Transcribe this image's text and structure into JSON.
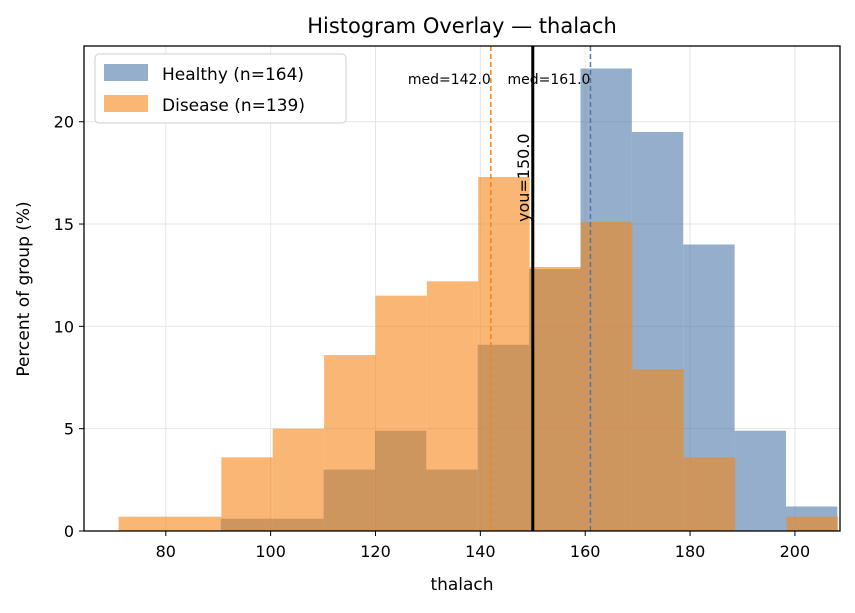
{
  "chart_data": {
    "type": "bar",
    "title": "Histogram Overlay — thalach",
    "xlabel": "thalach",
    "ylabel": "Percent of group (%)",
    "xlim": [
      64.4,
      208.6
    ],
    "ylim": [
      0,
      23.7
    ],
    "x_ticks": [
      80,
      100,
      120,
      140,
      160,
      180,
      200
    ],
    "y_ticks": [
      0,
      5,
      10,
      15,
      20
    ],
    "bin_edges": [
      71.0,
      80.8,
      90.6,
      100.4,
      110.2,
      120.0,
      129.8,
      139.6,
      149.4,
      159.2,
      169.0,
      178.8,
      188.6,
      198.4,
      208.2
    ],
    "grid": true,
    "legend_position": "top-left",
    "series": [
      {
        "name": "Healthy (n=164)",
        "color": "#4c78a8",
        "opacity": 0.6,
        "bin_edges": [
          90.5,
          100.3,
          110.1,
          119.9,
          129.7,
          139.5,
          149.3,
          159.1,
          168.9,
          178.7,
          188.5,
          198.3,
          208.1
        ],
        "values": [
          0.6,
          0.6,
          3.0,
          4.9,
          3.0,
          9.1,
          12.8,
          22.6,
          19.5,
          14.0,
          4.9,
          1.2
        ]
      },
      {
        "name": "Disease (n=139)",
        "color": "#f58518",
        "opacity": 0.6,
        "bin_edges": [
          71.0,
          80.8,
          90.6,
          100.4,
          110.2,
          120.0,
          129.8,
          139.6,
          149.4,
          159.2,
          169.0,
          178.8,
          188.6,
          198.4,
          208.2
        ],
        "values": [
          0.7,
          0.7,
          3.6,
          5.0,
          8.6,
          11.5,
          12.2,
          17.3,
          12.9,
          15.1,
          7.9,
          3.6,
          0.0,
          0.7
        ]
      }
    ],
    "annotations": [
      {
        "label": "med=142.0",
        "x": 142.0,
        "color": "#f58518",
        "style": "dashed"
      },
      {
        "label": "med=161.0",
        "x": 161.0,
        "color": "#4c78a8",
        "style": "dashed"
      },
      {
        "label": "you=150.0",
        "x": 150.0,
        "color": "#000000",
        "style": "solid"
      }
    ]
  }
}
